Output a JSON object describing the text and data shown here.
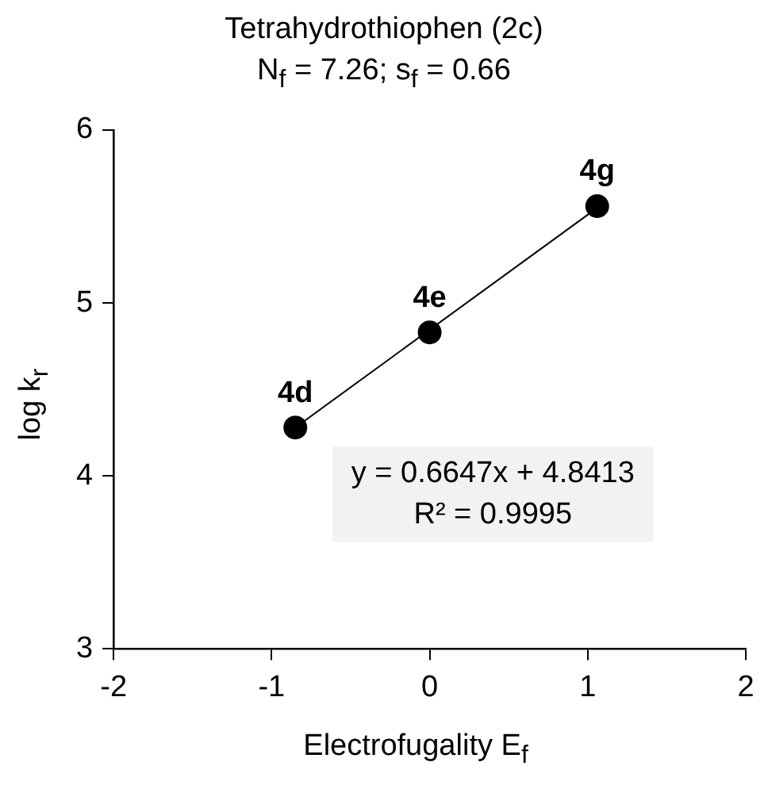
{
  "chart_data": {
    "type": "scatter",
    "title": "Tetrahydrothiophen (2c)",
    "subtitle": "N$_{f}$ = 7.26; s$_{f}$ = 0.66",
    "xlabel": "Electrofugality E$_{f}$",
    "ylabel": "log k$_{r}$",
    "x": [
      -0.85,
      0.0,
      1.06
    ],
    "series": [
      {
        "color": "#000000",
        "values": [
          4.28,
          4.83,
          5.56
        ]
      },
      {
        "type": "line",
        "color": "#000000",
        "marker": "none",
        "x": [
          -0.85,
          1.06
        ],
        "values": [
          4.28,
          5.55
        ]
      }
    ],
    "xlim": [
      -2,
      2
    ],
    "xticks": [
      -2,
      -1,
      0,
      1,
      2
    ],
    "ylim": [
      3,
      6
    ],
    "yticks": [
      3,
      4,
      5,
      6
    ],
    "marker": "circle",
    "annotations": [
      {
        "text": "4d",
        "x": -0.85,
        "y": 4.28
      },
      {
        "text": "4e",
        "x": 0.0,
        "y": 4.83
      },
      {
        "text": "4g",
        "x": 1.06,
        "y": 5.56
      },
      "y = 0.6647x + 4.8413",
      "R² = 0.9995"
    ]
  }
}
